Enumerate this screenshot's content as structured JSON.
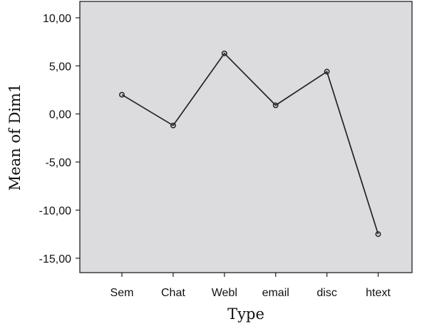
{
  "chart_data": {
    "type": "line",
    "xlabel": "Type",
    "ylabel": "Mean of Dim1",
    "categories": [
      "Sem",
      "Chat",
      "Webl",
      "email",
      "disc",
      "htext"
    ],
    "series": [
      {
        "values": [
          2.0,
          -1.2,
          6.3,
          0.9,
          4.4,
          -12.5
        ]
      }
    ],
    "ylim": [
      -16.5,
      11.7
    ],
    "yticks": [
      10,
      5,
      0,
      -5,
      -10,
      -15
    ],
    "ytick_labels": [
      "10,00",
      "5,00",
      "0,00",
      "-5,00",
      "-10,00",
      "-15,00"
    ],
    "grid": false,
    "plot_background": "#dcdcde",
    "line_color": "#222222"
  }
}
